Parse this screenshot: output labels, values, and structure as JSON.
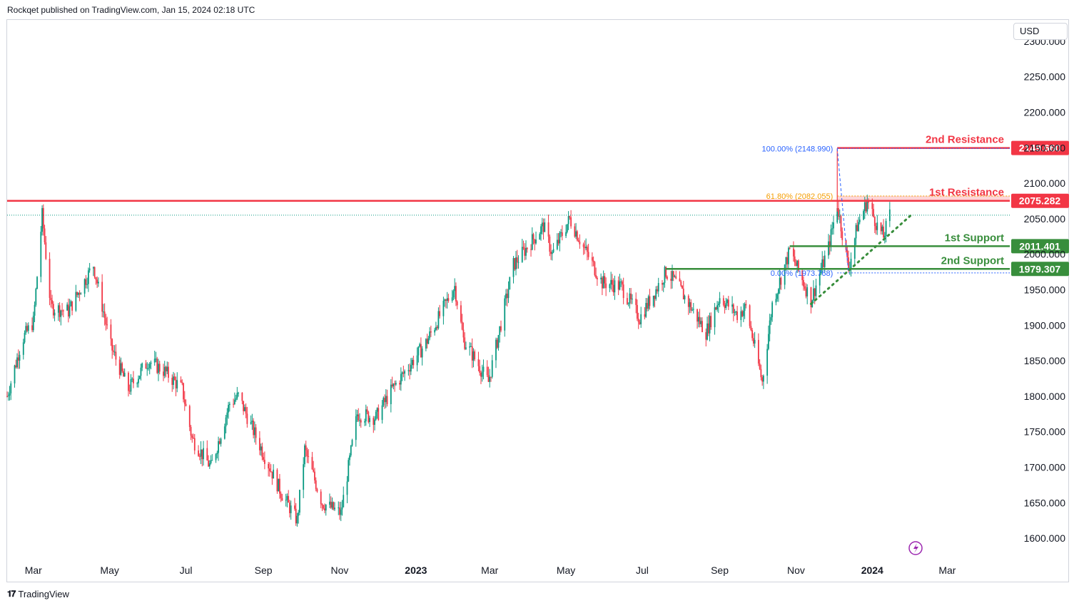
{
  "header": {
    "publisher_line": "Rockqet published on TradingView.com, Jan 15, 2024 02:18 UTC"
  },
  "currency_button": "USD",
  "footer": {
    "brand": "TradingView"
  },
  "colors": {
    "up": "#089981",
    "down": "#f23645",
    "resistance": "#f23645",
    "support": "#388e3c",
    "fib_blue": "#2962ff",
    "fib_orange": "#f59d00",
    "resistance_zone": "#fccbcd"
  },
  "chart_data": {
    "type": "candlestick",
    "title": "",
    "ylim": [
      1570,
      2330
    ],
    "y_ticks": [
      "2300.000",
      "2250.000",
      "2200.000",
      "2150.000",
      "2100.000",
      "2050.000",
      "2000.000",
      "1950.000",
      "1900.000",
      "1850.000",
      "1800.000",
      "1750.000",
      "1700.000",
      "1650.000",
      "1600.000"
    ],
    "y_tick_values": [
      2300,
      2250,
      2200,
      2150,
      2100,
      2050,
      2000,
      1950,
      1900,
      1850,
      1800,
      1750,
      1700,
      1650,
      1600
    ],
    "x_ticks": [
      {
        "label": "Mar",
        "date": "2022-03-01"
      },
      {
        "label": "May",
        "date": "2022-05-01"
      },
      {
        "label": "Jul",
        "date": "2022-07-01"
      },
      {
        "label": "Sep",
        "date": "2022-09-01"
      },
      {
        "label": "Nov",
        "date": "2022-11-01"
      },
      {
        "label": "2023",
        "date": "2023-01-01",
        "bold": true
      },
      {
        "label": "Mar",
        "date": "2023-03-01"
      },
      {
        "label": "May",
        "date": "2023-05-01"
      },
      {
        "label": "Jul",
        "date": "2023-07-01"
      },
      {
        "label": "Sep",
        "date": "2023-09-01"
      },
      {
        "label": "Nov",
        "date": "2023-11-01"
      },
      {
        "label": "2024",
        "date": "2024-01-01",
        "bold": true
      },
      {
        "label": "Mar",
        "date": "2024-03-01"
      }
    ],
    "x_range": [
      "2022-02-08",
      "2024-04-20"
    ],
    "price_anchors": [
      [
        "2022-02-08",
        1800
      ],
      [
        "2022-02-20",
        1880
      ],
      [
        "2022-03-01",
        1905
      ],
      [
        "2022-03-08",
        2055
      ],
      [
        "2022-03-15",
        1925
      ],
      [
        "2022-03-29",
        1920
      ],
      [
        "2022-04-18",
        1985
      ],
      [
        "2022-05-02",
        1870
      ],
      [
        "2022-05-16",
        1810
      ],
      [
        "2022-06-01",
        1850
      ],
      [
        "2022-06-14",
        1835
      ],
      [
        "2022-06-28",
        1810
      ],
      [
        "2022-07-06",
        1740
      ],
      [
        "2022-07-21",
        1700
      ],
      [
        "2022-08-05",
        1790
      ],
      [
        "2022-08-12",
        1800
      ],
      [
        "2022-08-28",
        1735
      ],
      [
        "2022-09-15",
        1665
      ],
      [
        "2022-09-28",
        1625
      ],
      [
        "2022-10-04",
        1725
      ],
      [
        "2022-10-18",
        1650
      ],
      [
        "2022-11-02",
        1635
      ],
      [
        "2022-11-15",
        1775
      ],
      [
        "2022-11-30",
        1770
      ],
      [
        "2022-12-13",
        1810
      ],
      [
        "2023-01-09",
        1875
      ],
      [
        "2023-02-01",
        1955
      ],
      [
        "2023-02-08",
        1880
      ],
      [
        "2023-02-28",
        1820
      ],
      [
        "2023-03-20",
        1985
      ],
      [
        "2023-04-13",
        2040
      ],
      [
        "2023-04-20",
        2000
      ],
      [
        "2023-05-04",
        2050
      ],
      [
        "2023-05-15",
        2010
      ],
      [
        "2023-05-30",
        1960
      ],
      [
        "2023-06-14",
        1955
      ],
      [
        "2023-06-29",
        1910
      ],
      [
        "2023-07-20",
        1975
      ],
      [
        "2023-07-28",
        1960
      ],
      [
        "2023-08-21",
        1890
      ],
      [
        "2023-09-01",
        1940
      ],
      [
        "2023-09-15",
        1915
      ],
      [
        "2023-09-22",
        1925
      ],
      [
        "2023-10-05",
        1820
      ],
      [
        "2023-10-13",
        1930
      ],
      [
        "2023-10-27",
        2005
      ],
      [
        "2023-11-13",
        1935
      ],
      [
        "2023-11-27",
        2010
      ],
      [
        "2023-12-04",
        2070
      ],
      [
        "2023-12-13",
        1980
      ],
      [
        "2023-12-20",
        2040
      ],
      [
        "2023-12-28",
        2075
      ],
      [
        "2024-01-05",
        2040
      ],
      [
        "2024-01-10",
        2025
      ],
      [
        "2024-01-15",
        2055
      ]
    ],
    "high_low": {
      "high": {
        "date": "2023-12-04",
        "value": 2148.99
      },
      "low": {
        "date": "2022-09-28",
        "value": 1615
      }
    },
    "levels": [
      {
        "name": "2nd Resistance",
        "value": 2149.66,
        "label": "2149.660",
        "kind": "resistance",
        "start": "2023-12-04"
      },
      {
        "name": "1st Resistance",
        "value": 2075.282,
        "label": "2075.282",
        "kind": "resistance",
        "start": "2022-02-08"
      },
      {
        "name": "1st Support",
        "value": 2011.401,
        "label": "2011.401",
        "kind": "support",
        "start": "2023-10-27"
      },
      {
        "name": "2nd Support",
        "value": 1979.307,
        "label": "1979.307",
        "kind": "support",
        "start": "2023-07-20"
      }
    ],
    "resistance_zone": [
      2075.282,
      2082.055
    ],
    "fib": [
      {
        "label": "100.00% (2148.990)",
        "value": 2148.99,
        "color": "blue"
      },
      {
        "label": "61.80% (2082.055)",
        "value": 2082.055,
        "color": "orange"
      },
      {
        "label": "0.00% (1973.768)",
        "value": 1973.768,
        "color": "blue"
      }
    ],
    "trendline": {
      "start": {
        "date": "2023-11-13",
        "value": 1930
      },
      "end": {
        "date": "2024-02-01",
        "value": 2055
      }
    },
    "last_price": 2055
  }
}
